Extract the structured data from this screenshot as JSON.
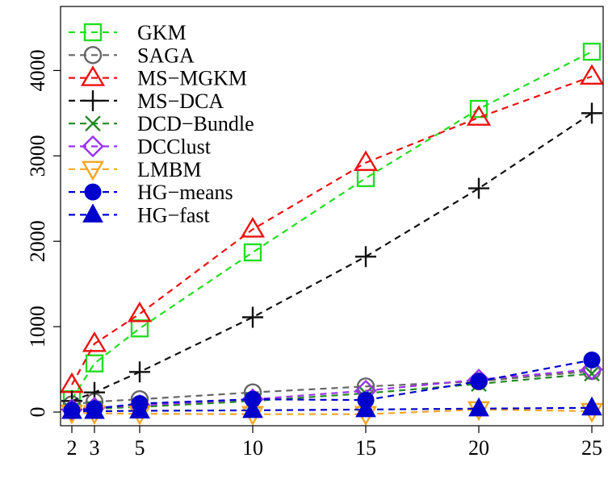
{
  "chart_data": {
    "type": "line",
    "title": "",
    "xlabel": "",
    "ylabel": "",
    "x": [
      2,
      3,
      5,
      10,
      15,
      20,
      25
    ],
    "xlim": [
      1.5,
      25.5
    ],
    "ylim": [
      -160,
      4750
    ],
    "xticks": [
      2,
      3,
      5,
      10,
      15,
      20,
      25
    ],
    "yticks": [
      0,
      1000,
      2000,
      3000,
      4000
    ],
    "grid": false,
    "legend_position": "top-left",
    "series": [
      {
        "name": "GKM",
        "color": "#22dd22",
        "marker": "square",
        "values": [
          150,
          570,
          980,
          1870,
          2740,
          3550,
          4220
        ]
      },
      {
        "name": "SAGA",
        "color": "#666666",
        "marker": "circle-open",
        "values": [
          90,
          120,
          150,
          230,
          300,
          360,
          480
        ]
      },
      {
        "name": "MS−MGKM",
        "color": "#ee1111",
        "marker": "triangle-open",
        "values": [
          320,
          800,
          1150,
          2140,
          2920,
          3450,
          3930
        ]
      },
      {
        "name": "MS−DCA",
        "color": "#111111",
        "marker": "plus",
        "values": [
          130,
          230,
          470,
          1110,
          1820,
          2620,
          3500
        ]
      },
      {
        "name": "DCD−Bundle",
        "color": "#228822",
        "marker": "cross",
        "values": [
          20,
          40,
          60,
          130,
          220,
          330,
          450
        ]
      },
      {
        "name": "DCClust",
        "color": "#9933ee",
        "marker": "diamond-open",
        "values": [
          30,
          50,
          80,
          150,
          250,
          380,
          500
        ]
      },
      {
        "name": "LMBM",
        "color": "#f5a623",
        "marker": "triangle-down",
        "values": [
          -10,
          -15,
          -20,
          -25,
          -25,
          30,
          10
        ]
      },
      {
        "name": "HG−means",
        "color": "#0000cc",
        "marker": "circle-filled",
        "values": [
          20,
          40,
          100,
          150,
          140,
          360,
          610
        ]
      },
      {
        "name": "HG−fast",
        "color": "#0000cc",
        "marker": "triangle-filled",
        "values": [
          10,
          10,
          15,
          20,
          30,
          40,
          50
        ]
      }
    ]
  }
}
